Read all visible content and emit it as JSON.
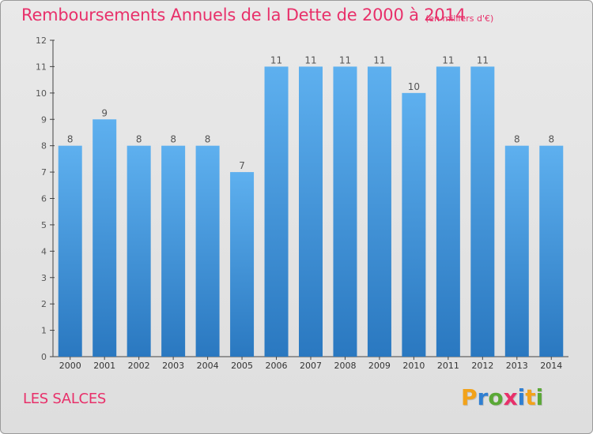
{
  "title": "Remboursements Annuels de la Dette de 2000 à 2014",
  "unit": "(en milliers d'€)",
  "commune": "LES SALCES",
  "logo": {
    "text": "Proxiti",
    "letters": [
      {
        "ch": "P",
        "color": "#f2a21a"
      },
      {
        "ch": "r",
        "color": "#2f7fd2"
      },
      {
        "ch": "o",
        "color": "#5aa836"
      },
      {
        "ch": "x",
        "color": "#e8306a"
      },
      {
        "ch": "i",
        "color": "#2f7fd2"
      },
      {
        "ch": "t",
        "color": "#f2a21a"
      },
      {
        "ch": "i",
        "color": "#5aa836"
      }
    ]
  },
  "colors": {
    "title": "#e8306a",
    "bar_light": "#5eb0ef",
    "bar_dark": "#2a78c0",
    "axis_text": "#555555"
  },
  "chart_data": {
    "type": "bar",
    "title": "Remboursements Annuels de la Dette de 2000 à 2014",
    "subtitle": "(en milliers d'€)",
    "xlabel": "",
    "ylabel": "",
    "categories": [
      "2000",
      "2001",
      "2002",
      "2003",
      "2004",
      "2005",
      "2006",
      "2007",
      "2008",
      "2009",
      "2010",
      "2011",
      "2012",
      "2013",
      "2014"
    ],
    "values": [
      8,
      9,
      8,
      8,
      8,
      7,
      11,
      11,
      11,
      11,
      10,
      11,
      11,
      8,
      8
    ],
    "ylim": [
      0,
      12
    ],
    "yticks": [
      0,
      1,
      2,
      3,
      4,
      5,
      6,
      7,
      8,
      9,
      10,
      11,
      12
    ],
    "grid": false,
    "data_labels": true
  }
}
